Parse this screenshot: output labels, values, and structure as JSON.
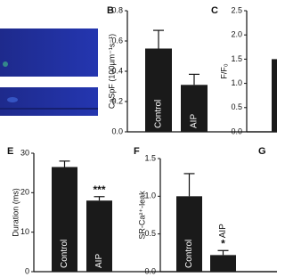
{
  "chart_data": [
    {
      "type": "bar",
      "panel": "B",
      "ylabel": "CaSpF (100µm⁻¹s⁻¹)",
      "categories": [
        "Control",
        "AIP"
      ],
      "values": [
        0.55,
        0.31
      ],
      "errors": [
        0.12,
        0.07
      ],
      "color": "#1a1a1a",
      "ylim": [
        0,
        0.8
      ],
      "yticks": [
        {
          "value": 0,
          "label": "0.0"
        },
        0.2,
        0.4,
        0.6,
        0.8
      ]
    },
    {
      "type": "bar",
      "panel": "C",
      "ylabel": "F/F₀",
      "categories": [
        null
      ],
      "values": [
        1.5
      ],
      "color": "#1a1a1a",
      "ylim": [
        0,
        2.5
      ],
      "yticks": [
        {
          "value": 0,
          "label": "0.0"
        },
        0.5,
        {
          "value": 1,
          "label": "1.0"
        },
        1.5,
        {
          "value": 2,
          "label": "2.0"
        },
        2.5
      ]
    },
    {
      "type": "bar",
      "panel": "E",
      "ylabel": "Duration (ms)",
      "categories": [
        "Control",
        "AIP"
      ],
      "values": [
        26.5,
        18
      ],
      "errors": [
        1.5,
        1
      ],
      "significance": [
        null,
        "***"
      ],
      "color": "#1a1a1a",
      "ylim": [
        0,
        30
      ],
      "yticks": [
        0,
        10,
        20,
        30
      ]
    },
    {
      "type": "bar",
      "panel": "F",
      "ylabel": "SR-Ca²⁺-leak",
      "categories": [
        "Control",
        "AIP"
      ],
      "values": [
        1.0,
        0.22
      ],
      "errors": [
        0.3,
        0.06
      ],
      "significance": [
        null,
        "*"
      ],
      "color": "#1a1a1a",
      "ylim": [
        0,
        1.5
      ],
      "yticks": [
        {
          "value": 0,
          "label": "0.0"
        },
        0.5,
        {
          "value": 1,
          "label": "1.0"
        },
        1.5
      ]
    },
    {
      "type": "none",
      "panel": "G"
    }
  ]
}
